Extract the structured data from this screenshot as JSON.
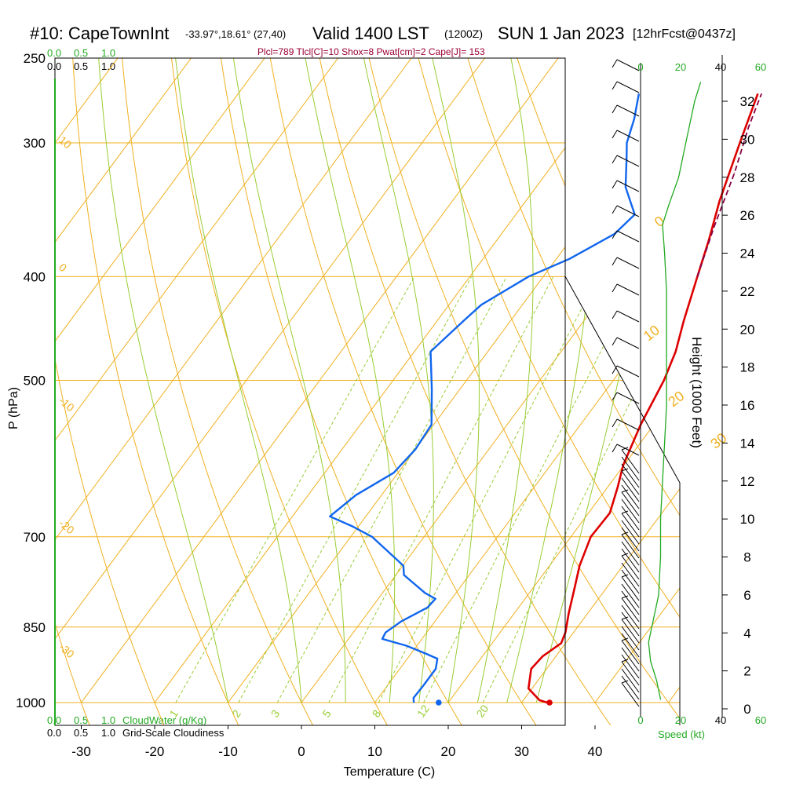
{
  "header": {
    "station": "#10: CapeTownInt",
    "coords": "-33.97°,18.61° (27,40)",
    "valid": "Valid 1400 LST",
    "zulu": "(1200Z)",
    "date": "SUN 1 Jan 2023",
    "forecast": "[12hrFcst@0437z]",
    "indices": "Plcl=789 Tlcl[C]=10 Shox=8 Pwat[cm]=2 Cape[J]= 153"
  },
  "colors": {
    "temperature": "#dd0000",
    "dewpoint": "#1166ee",
    "parcel": "#880044",
    "isotherm": "#f0b020",
    "dry_adiabat": "#f0b020",
    "moist_adiabat": "#99cc33",
    "mixing_ratio": "#99cc33",
    "wind_speed": "#22aa22"
  },
  "chart_data": [
    {
      "type": "line",
      "name": "skew-T log-P sounding",
      "xlabel": "Temperature (C)",
      "ylabel": "P (hPa)",
      "xticks": [
        -30,
        -20,
        -10,
        0,
        10,
        20,
        30,
        40
      ],
      "pressure_ticks": [
        250,
        300,
        400,
        500,
        700,
        850,
        1000
      ],
      "xlim": [
        -35,
        45
      ],
      "ylim": [
        1000,
        250
      ],
      "grid": true,
      "series": [
        {
          "role": "temperature",
          "points": [
            {
              "p": 1000,
              "t": 33.5
            },
            {
              "p": 995,
              "t": 32.2
            },
            {
              "p": 970,
              "t": 29.5
            },
            {
              "p": 930,
              "t": 27.9
            },
            {
              "p": 905,
              "t": 28.2
            },
            {
              "p": 880,
              "t": 29.4
            },
            {
              "p": 860,
              "t": 28.9
            },
            {
              "p": 825,
              "t": 27.4
            },
            {
              "p": 780,
              "t": 25.6
            },
            {
              "p": 745,
              "t": 24.1
            },
            {
              "p": 700,
              "t": 22.7
            },
            {
              "p": 665,
              "t": 22.9
            },
            {
              "p": 630,
              "t": 21.4
            },
            {
              "p": 600,
              "t": 19.9
            },
            {
              "p": 550,
              "t": 18.2
            },
            {
              "p": 500,
              "t": 16.9
            },
            {
              "p": 470,
              "t": 15.6
            },
            {
              "p": 440,
              "t": 13.6
            },
            {
              "p": 400,
              "t": 11.0
            },
            {
              "p": 370,
              "t": 8.9
            },
            {
              "p": 340,
              "t": 6.4
            },
            {
              "p": 300,
              "t": 3.3
            },
            {
              "p": 270,
              "t": 0.8
            }
          ]
        },
        {
          "role": "dewpoint",
          "points": [
            {
              "p": 1000,
              "t": 15.3
            },
            {
              "p": 990,
              "t": 14.8
            },
            {
              "p": 965,
              "t": 14.9
            },
            {
              "p": 930,
              "t": 14.9
            },
            {
              "p": 910,
              "t": 14.1
            },
            {
              "p": 900,
              "t": 12.0
            },
            {
              "p": 885,
              "t": 8.6
            },
            {
              "p": 872,
              "t": 4.6
            },
            {
              "p": 860,
              "t": 4.4
            },
            {
              "p": 840,
              "t": 5.4
            },
            {
              "p": 815,
              "t": 7.6
            },
            {
              "p": 800,
              "t": 7.8
            },
            {
              "p": 790,
              "t": 5.8
            },
            {
              "p": 760,
              "t": 1.1
            },
            {
              "p": 745,
              "t": 0.1
            },
            {
              "p": 700,
              "t": -7.1
            },
            {
              "p": 685,
              "t": -10.7
            },
            {
              "p": 670,
              "t": -14.9
            },
            {
              "p": 640,
              "t": -13.5
            },
            {
              "p": 610,
              "t": -10.6
            },
            {
              "p": 580,
              "t": -10.0
            },
            {
              "p": 550,
              "t": -10.3
            },
            {
              "p": 510,
              "t": -13.8
            },
            {
              "p": 470,
              "t": -17.8
            },
            {
              "p": 440,
              "t": -16.4
            },
            {
              "p": 425,
              "t": -15.6
            },
            {
              "p": 400,
              "t": -12.0
            },
            {
              "p": 385,
              "t": -8.2
            },
            {
              "p": 365,
              "t": -4.6
            },
            {
              "p": 350,
              "t": -3.8
            },
            {
              "p": 330,
              "t": -7.8
            },
            {
              "p": 310,
              "t": -10.6
            },
            {
              "p": 300,
              "t": -12.1
            },
            {
              "p": 285,
              "t": -13.5
            },
            {
              "p": 270,
              "t": -15.4
            }
          ]
        },
        {
          "role": "parcel",
          "points": [
            {
              "p": 400,
              "t": 11.0
            },
            {
              "p": 360,
              "t": 8.3
            },
            {
              "p": 320,
              "t": 5.6
            },
            {
              "p": 290,
              "t": 2.9
            },
            {
              "p": 270,
              "t": 1.3
            }
          ]
        }
      ],
      "surface_markers": [
        {
          "role": "temperature",
          "p": 1000,
          "t": 33.8
        },
        {
          "role": "dewpoint",
          "p": 1000,
          "t": 18.7
        }
      ],
      "isotherm_labels": [
        "0",
        "10",
        "20",
        "30"
      ],
      "dry_adiabat_labels": [
        "10",
        "0",
        "-10",
        "-20",
        "-30"
      ],
      "mixing_ratio_labels": [
        "1",
        "2",
        "3",
        "5",
        "8",
        "12",
        "20"
      ],
      "cloud_scales": {
        "cloud_water_label": "CloudWater (g/Kg)",
        "cloudiness_label": "Grid-Scale Cloudiness",
        "ticks": [
          "0.0",
          "0.5",
          "1.0"
        ]
      }
    },
    {
      "type": "line",
      "name": "wind speed profile",
      "xlabel": "Speed (kt)",
      "ylabel": "Height (1000 Feet)",
      "xticks": [
        0,
        20,
        40,
        60
      ],
      "height_ticks": [
        0,
        2,
        4,
        6,
        8,
        10,
        12,
        14,
        16,
        18,
        20,
        22,
        24,
        26,
        28,
        30,
        32
      ],
      "xlim": [
        0,
        60
      ],
      "ylim": [
        0,
        33
      ],
      "series": [
        {
          "role": "wind_speed",
          "points": [
            {
              "h": 0.5,
              "kt": 10
            },
            {
              "h": 1.5,
              "kt": 8
            },
            {
              "h": 2.5,
              "kt": 5
            },
            {
              "h": 3.5,
              "kt": 4
            },
            {
              "h": 4.5,
              "kt": 6
            },
            {
              "h": 6,
              "kt": 9
            },
            {
              "h": 8,
              "kt": 10
            },
            {
              "h": 10,
              "kt": 10
            },
            {
              "h": 12,
              "kt": 11
            },
            {
              "h": 14,
              "kt": 12
            },
            {
              "h": 16,
              "kt": 13
            },
            {
              "h": 18,
              "kt": 13
            },
            {
              "h": 20,
              "kt": 13
            },
            {
              "h": 22,
              "kt": 13
            },
            {
              "h": 24,
              "kt": 12
            },
            {
              "h": 25.5,
              "kt": 11
            },
            {
              "h": 26.5,
              "kt": 14
            },
            {
              "h": 28,
              "kt": 19
            },
            {
              "h": 30,
              "kt": 23
            },
            {
              "h": 32,
              "kt": 27
            },
            {
              "h": 33,
              "kt": 30
            }
          ]
        }
      ]
    }
  ]
}
